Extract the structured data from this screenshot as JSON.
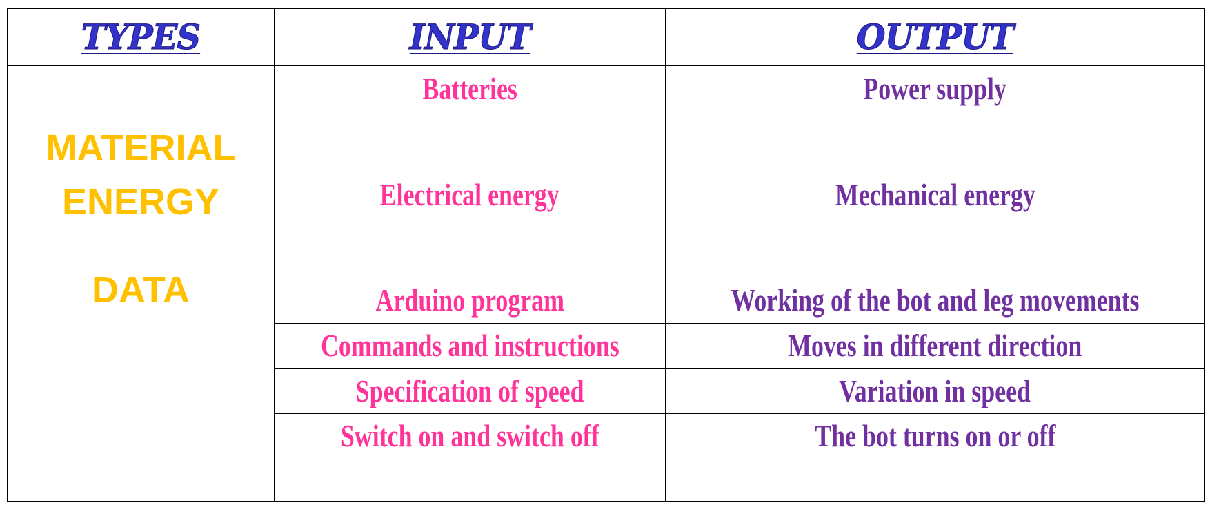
{
  "header": {
    "types": "TYPES",
    "input": "INPUT",
    "output": "OUTPUT"
  },
  "rows": {
    "material": {
      "type": "MATERIAL",
      "input": "Batteries",
      "output": "Power supply"
    },
    "energy": {
      "type": "ENERGY",
      "input": "Electrical energy",
      "output": "Mechanical energy"
    },
    "data": {
      "type": "DATA",
      "items": [
        {
          "input": "Arduino program",
          "output": "Working of the bot and leg movements"
        },
        {
          "input": "Commands and instructions",
          "output": "Moves in different direction"
        },
        {
          "input": "Specification of speed",
          "output": "Variation in speed"
        },
        {
          "input": "Switch on and switch off",
          "output": "The bot turns on or off"
        }
      ]
    }
  },
  "colors": {
    "header": "#3333cc",
    "type_label": "#ffc000",
    "input_text": "#ff3399",
    "output_text": "#7030a0",
    "border": "#000000"
  }
}
